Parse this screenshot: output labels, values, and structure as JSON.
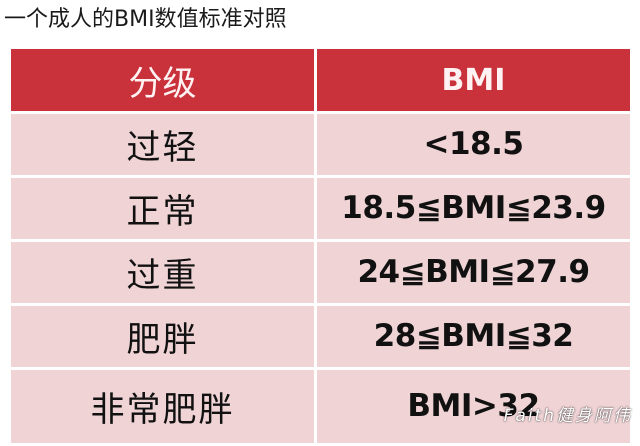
{
  "title": "一个成人的BMI数值标准对照",
  "table": {
    "headers": [
      "分级",
      "BMI"
    ],
    "rows": [
      {
        "grade": "过轻",
        "range": "<18.5"
      },
      {
        "grade": "正常",
        "range": "18.5≦BMI≦23.9"
      },
      {
        "grade": "过重",
        "range": "24≦BMI≦27.9"
      },
      {
        "grade": "肥胖",
        "range": "28≦BMI≦32"
      },
      {
        "grade": "非常肥胖",
        "range": "BMI>32"
      }
    ]
  },
  "watermark": "Faith健身阿伟",
  "colors": {
    "header_bg": "#c9313b",
    "row_bg": "#efd3d5",
    "header_text": "#fff2f2"
  }
}
